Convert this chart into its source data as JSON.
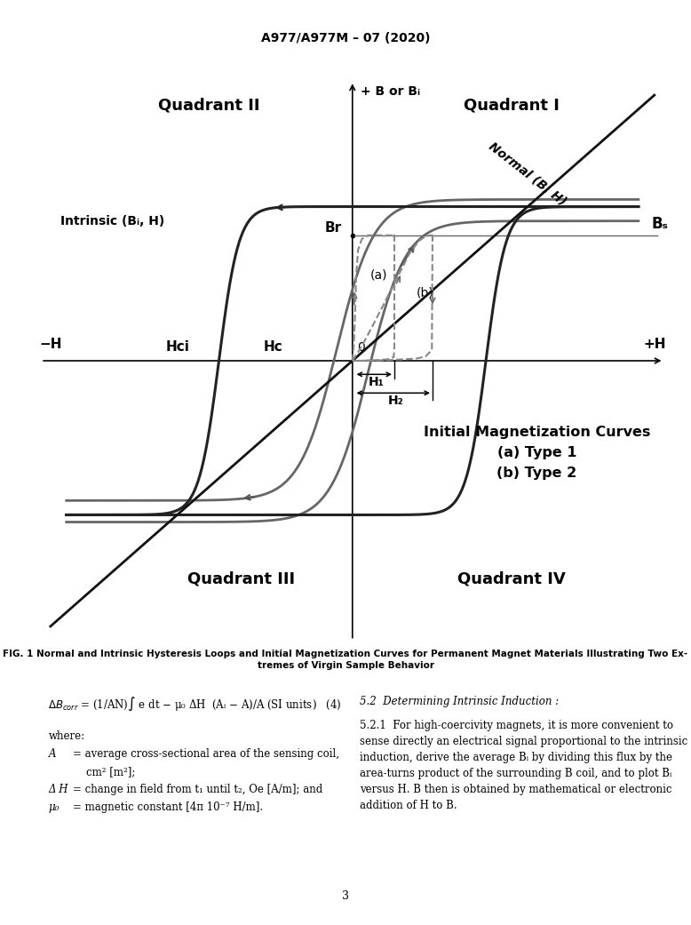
{
  "title": "A977/A977M – 07 (2020)",
  "fig_caption": "FIG. 1 Normal and Intrinsic Hysteresis Loops and Initial Magnetization Curves for Permanent Magnet Materials Illustrating Two Ex-\ntremes of Virgin Sample Behavior",
  "quadrant_II": "Quadrant II",
  "quadrant_I": "Quadrant I",
  "quadrant_III": "Quadrant III",
  "quadrant_IV": "Quadrant IV",
  "ylabel": "+ B or Bᵢ",
  "xlabel_neg": "−H",
  "xlabel_pos": "+H",
  "label_normal": "Normal (B, H)",
  "label_intrinsic": "Intrinsic (Bᵢ, H)",
  "label_Br": "Br",
  "label_Bs": "Bₛ",
  "label_Hci": "Hci",
  "label_Hc": "Hc",
  "label_H1": "H₁",
  "label_H2": "H₂",
  "label_a": "(a)",
  "label_b": "(b)",
  "annotation_curves": "Initial Magnetization Curves\n(a) Type 1\n(b) Type 2",
  "page_number": "3",
  "background_color": "#ffffff"
}
